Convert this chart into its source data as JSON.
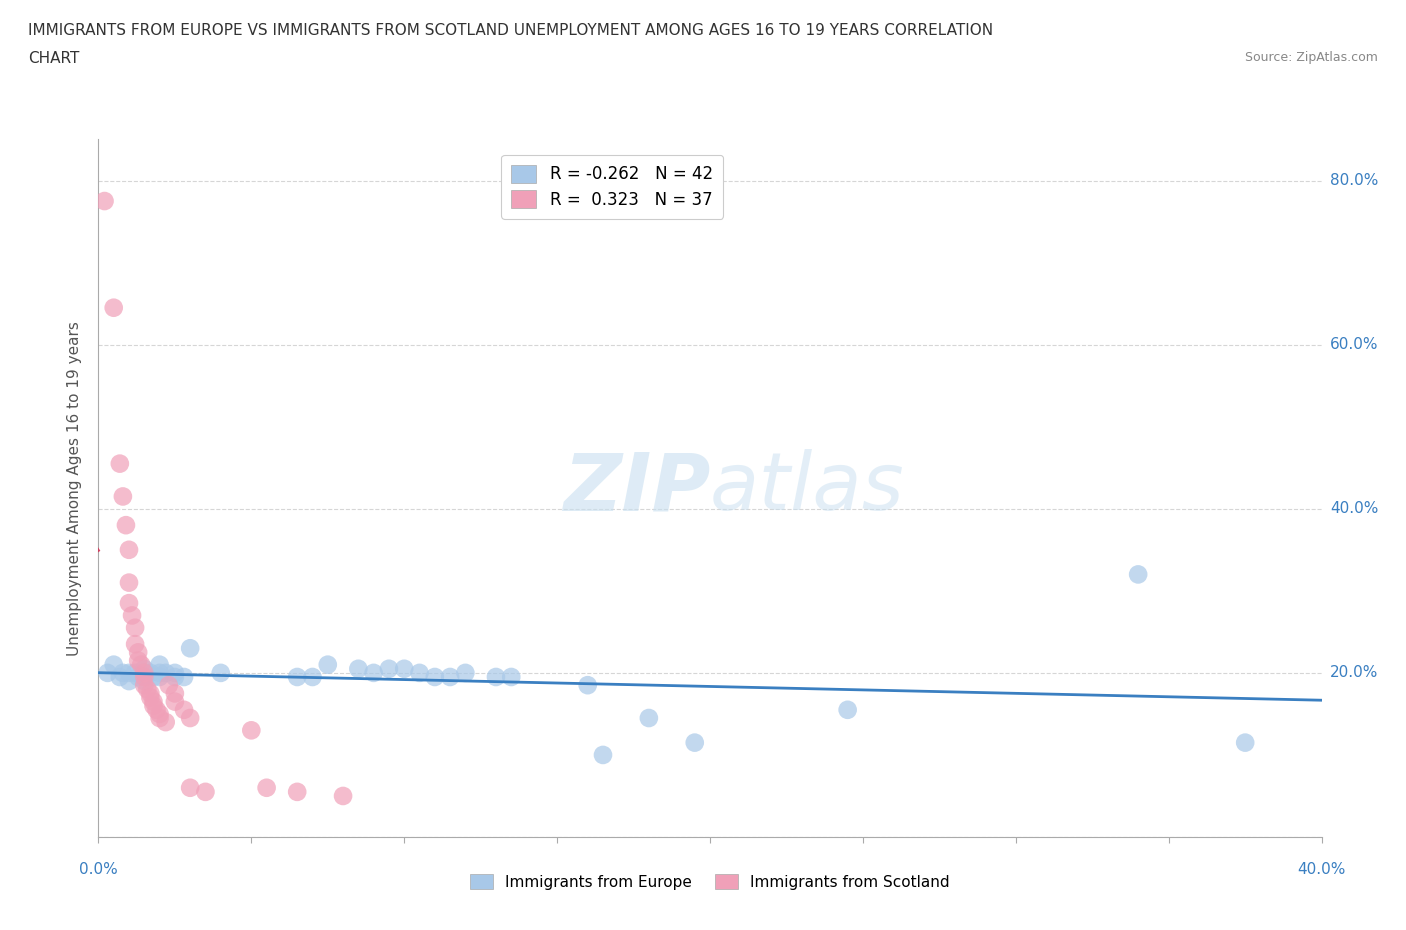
{
  "title_line1": "IMMIGRANTS FROM EUROPE VS IMMIGRANTS FROM SCOTLAND UNEMPLOYMENT AMONG AGES 16 TO 19 YEARS CORRELATION",
  "title_line2": "CHART",
  "source_text": "Source: ZipAtlas.com",
  "ylabel": "Unemployment Among Ages 16 to 19 years",
  "xlim": [
    0.0,
    0.4
  ],
  "ylim": [
    0.0,
    0.85
  ],
  "xticks": [
    0.0,
    0.05,
    0.1,
    0.15,
    0.2,
    0.25,
    0.3,
    0.35,
    0.4
  ],
  "yticks": [
    0.0,
    0.2,
    0.4,
    0.6,
    0.8
  ],
  "europe_color": "#a8c8e8",
  "scotland_color": "#f0a0b8",
  "europe_line_color": "#3a7fc1",
  "scotland_line_color": "#d04060",
  "background_color": "#ffffff",
  "watermark_zip": "ZIP",
  "watermark_atlas": "atlas",
  "europe_points": [
    [
      0.003,
      0.2
    ],
    [
      0.005,
      0.21
    ],
    [
      0.007,
      0.195
    ],
    [
      0.008,
      0.2
    ],
    [
      0.01,
      0.2
    ],
    [
      0.01,
      0.19
    ],
    [
      0.012,
      0.2
    ],
    [
      0.013,
      0.195
    ],
    [
      0.015,
      0.205
    ],
    [
      0.015,
      0.195
    ],
    [
      0.015,
      0.19
    ],
    [
      0.017,
      0.2
    ],
    [
      0.018,
      0.195
    ],
    [
      0.02,
      0.21
    ],
    [
      0.02,
      0.2
    ],
    [
      0.02,
      0.195
    ],
    [
      0.022,
      0.2
    ],
    [
      0.025,
      0.2
    ],
    [
      0.025,
      0.195
    ],
    [
      0.028,
      0.195
    ],
    [
      0.03,
      0.23
    ],
    [
      0.04,
      0.2
    ],
    [
      0.065,
      0.195
    ],
    [
      0.07,
      0.195
    ],
    [
      0.075,
      0.21
    ],
    [
      0.085,
      0.205
    ],
    [
      0.09,
      0.2
    ],
    [
      0.095,
      0.205
    ],
    [
      0.1,
      0.205
    ],
    [
      0.105,
      0.2
    ],
    [
      0.11,
      0.195
    ],
    [
      0.115,
      0.195
    ],
    [
      0.12,
      0.2
    ],
    [
      0.13,
      0.195
    ],
    [
      0.135,
      0.195
    ],
    [
      0.16,
      0.185
    ],
    [
      0.165,
      0.1
    ],
    [
      0.18,
      0.145
    ],
    [
      0.195,
      0.115
    ],
    [
      0.245,
      0.155
    ],
    [
      0.34,
      0.32
    ],
    [
      0.375,
      0.115
    ]
  ],
  "scotland_points": [
    [
      0.002,
      0.775
    ],
    [
      0.005,
      0.645
    ],
    [
      0.007,
      0.455
    ],
    [
      0.008,
      0.415
    ],
    [
      0.009,
      0.38
    ],
    [
      0.01,
      0.35
    ],
    [
      0.01,
      0.31
    ],
    [
      0.01,
      0.285
    ],
    [
      0.011,
      0.27
    ],
    [
      0.012,
      0.255
    ],
    [
      0.012,
      0.235
    ],
    [
      0.013,
      0.225
    ],
    [
      0.013,
      0.215
    ],
    [
      0.014,
      0.21
    ],
    [
      0.015,
      0.2
    ],
    [
      0.015,
      0.195
    ],
    [
      0.015,
      0.185
    ],
    [
      0.016,
      0.18
    ],
    [
      0.017,
      0.175
    ],
    [
      0.017,
      0.17
    ],
    [
      0.018,
      0.165
    ],
    [
      0.018,
      0.16
    ],
    [
      0.019,
      0.155
    ],
    [
      0.02,
      0.15
    ],
    [
      0.02,
      0.145
    ],
    [
      0.022,
      0.14
    ],
    [
      0.023,
      0.185
    ],
    [
      0.025,
      0.175
    ],
    [
      0.025,
      0.165
    ],
    [
      0.028,
      0.155
    ],
    [
      0.03,
      0.145
    ],
    [
      0.03,
      0.06
    ],
    [
      0.035,
      0.055
    ],
    [
      0.05,
      0.13
    ],
    [
      0.055,
      0.06
    ],
    [
      0.065,
      0.055
    ],
    [
      0.08,
      0.05
    ]
  ]
}
